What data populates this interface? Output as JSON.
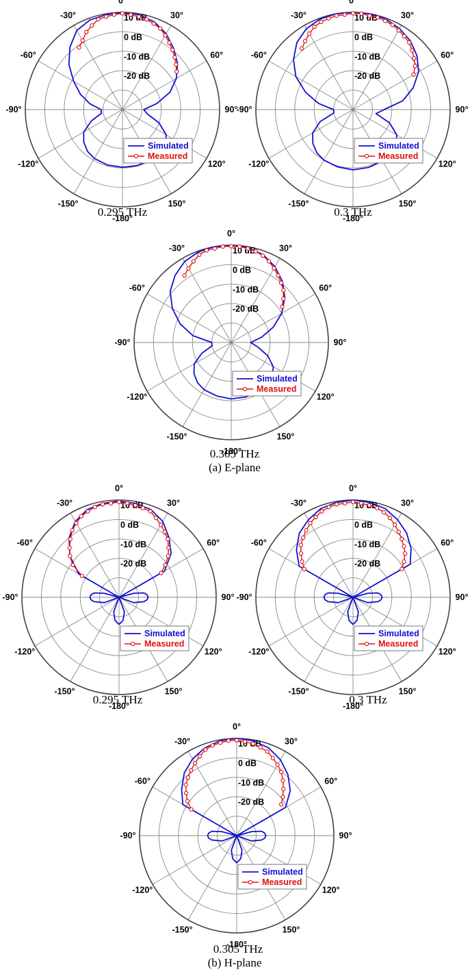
{
  "figure": {
    "section_a_caption": "(a) E-plane",
    "section_b_caption": "(b) H-plane",
    "angle_labels": [
      "0°",
      "30°",
      "60°",
      "90°",
      "120°",
      "150°",
      "-180°",
      "-150°",
      "-120°",
      "-90°",
      "-60°",
      "-30°"
    ],
    "db_labels": [
      "10 dB",
      "0 dB",
      "-10 dB",
      "-20 dB"
    ],
    "legend": {
      "simulated": "Simulated",
      "measured": "Measured"
    },
    "colors": {
      "simulated": "#1010d0",
      "measured": "#e01010",
      "grid": "#888888",
      "outer": "#444444"
    }
  },
  "chart_data": [
    {
      "type": "polar-line",
      "plane": "E-plane",
      "frequency": "0.295 THz",
      "r_range_dB": [
        -40,
        10
      ],
      "r_ticks_dB": [
        10,
        0,
        -10,
        -20
      ],
      "series": [
        {
          "name": "Simulated",
          "theta_deg": [
            -180,
            -165,
            -150,
            -140,
            -130,
            -120,
            -110,
            -100,
            -90,
            -80,
            -70,
            -60,
            -50,
            -40,
            -30,
            -20,
            -10,
            0,
            10,
            20,
            30,
            40,
            50,
            60,
            70,
            80,
            90,
            100,
            110,
            120,
            130,
            140,
            150,
            165,
            180
          ],
          "r_dB": [
            -10.3,
            -10.5,
            -11,
            -12,
            -14,
            -17,
            -23,
            -29,
            -29,
            -23,
            -17,
            -11,
            -4,
            2,
            7,
            9,
            9.5,
            10,
            9.5,
            8,
            5,
            1,
            -3,
            -8,
            -14,
            -22,
            -29,
            -27,
            -20,
            -14,
            -11,
            -10.5,
            -10.3,
            -10.2,
            -10.3
          ]
        },
        {
          "name": "Measured",
          "theta_deg": [
            -35,
            -30,
            -25,
            -20,
            -15,
            -10,
            -5,
            0,
            5,
            10,
            15,
            20,
            25,
            30,
            35,
            40,
            45,
            50,
            55
          ],
          "r_dB": [
            -1,
            1,
            4,
            6,
            8,
            8.5,
            9,
            9.5,
            9,
            8.5,
            8,
            7,
            6,
            4,
            2,
            0,
            -2,
            -4,
            -6
          ]
        }
      ]
    },
    {
      "type": "polar-line",
      "plane": "E-plane",
      "frequency": "0.3 THz",
      "r_range_dB": [
        -40,
        10
      ],
      "r_ticks_dB": [
        10,
        0,
        -10,
        -20
      ],
      "series": [
        {
          "name": "Simulated",
          "theta_deg": [
            -180,
            -165,
            -150,
            -140,
            -130,
            -120,
            -110,
            -100,
            -90,
            -80,
            -70,
            -60,
            -50,
            -40,
            -30,
            -20,
            -10,
            0,
            10,
            20,
            30,
            40,
            50,
            60,
            70,
            80,
            90,
            100,
            110,
            120,
            130,
            140,
            150,
            165,
            180
          ],
          "r_dB": [
            -9,
            -9.5,
            -10,
            -11,
            -13,
            -16,
            -22,
            -30,
            -30,
            -22,
            -14,
            -6,
            0,
            5,
            8,
            9.5,
            10,
            10,
            10,
            9.5,
            8,
            6,
            3,
            -1,
            -7,
            -14,
            -24,
            -28,
            -20,
            -14,
            -11,
            -10,
            -9.5,
            -9.2,
            -9
          ]
        },
        {
          "name": "Measured",
          "theta_deg": [
            -40,
            -35,
            -30,
            -25,
            -20,
            -15,
            -10,
            -5,
            0,
            5,
            10,
            15,
            20,
            25,
            30,
            35,
            40,
            45,
            50,
            55,
            60
          ],
          "r_dB": [
            1,
            3,
            5,
            7,
            8,
            8.5,
            9,
            9,
            9.5,
            9.5,
            9,
            9,
            8.5,
            8,
            7,
            6,
            5,
            3,
            1,
            -1,
            -4
          ]
        }
      ]
    },
    {
      "type": "polar-line",
      "plane": "E-plane",
      "frequency": "0.305 THz",
      "r_range_dB": [
        -40,
        10
      ],
      "r_ticks_dB": [
        10,
        0,
        -10,
        -20
      ],
      "series": [
        {
          "name": "Simulated",
          "theta_deg": [
            -180,
            -165,
            -150,
            -140,
            -130,
            -120,
            -110,
            -100,
            -90,
            -80,
            -70,
            -60,
            -50,
            -40,
            -30,
            -20,
            -10,
            0,
            10,
            20,
            30,
            40,
            50,
            60,
            70,
            80,
            90,
            100,
            110,
            120,
            130,
            140,
            150,
            165,
            180
          ],
          "r_dB": [
            -11,
            -11.5,
            -12,
            -13,
            -15,
            -18,
            -24,
            -30,
            -30,
            -20,
            -12,
            -5,
            1,
            5,
            8,
            9.5,
            10,
            10,
            9.5,
            8,
            5,
            1,
            -4,
            -10,
            -17,
            -24,
            -30,
            -26,
            -20,
            -15,
            -12.5,
            -11.5,
            -11,
            -11,
            -11
          ]
        },
        {
          "name": "Measured",
          "theta_deg": [
            -35,
            -30,
            -25,
            -20,
            -15,
            -10,
            -5,
            0,
            5,
            10,
            15,
            20,
            25,
            30,
            35,
            40,
            45,
            50,
            55
          ],
          "r_dB": [
            2,
            4,
            6,
            8,
            9,
            9,
            9.5,
            9.5,
            9.5,
            9,
            8.5,
            7.5,
            6,
            4,
            2,
            0,
            -2,
            -5,
            -8
          ]
        }
      ]
    },
    {
      "type": "polar-line",
      "plane": "H-plane",
      "frequency": "0.295 THz",
      "r_range_dB": [
        -40,
        10
      ],
      "r_ticks_dB": [
        10,
        0,
        -10,
        -20
      ],
      "series": [
        {
          "name": "Simulated",
          "theta_deg": [
            -180,
            -170,
            -160,
            -150,
            -140,
            -130,
            -120,
            -110,
            -100,
            -95,
            -90,
            -85,
            -80,
            -75,
            -70,
            -60,
            -50,
            -40,
            -30,
            -20,
            -10,
            0,
            10,
            20,
            30,
            40,
            50,
            60,
            70,
            75,
            80,
            85,
            90,
            95,
            100,
            110,
            120,
            130,
            140,
            150,
            160,
            170,
            180
          ],
          "r_dB": [
            -26,
            -28,
            -32,
            -40,
            -40,
            -40,
            -40,
            -32,
            -27,
            -25.5,
            -25,
            -25.5,
            -27,
            -32,
            -40,
            -16,
            -7,
            0,
            5,
            8,
            9,
            9.5,
            9,
            8,
            5,
            0,
            -5,
            -13,
            -40,
            -32,
            -27,
            -25.5,
            -25,
            -25.5,
            -27,
            -32,
            -40,
            -40,
            -40,
            -40,
            -32,
            -28,
            -26
          ]
        },
        {
          "name": "Measured",
          "theta_deg": [
            -60,
            -55,
            -50,
            -45,
            -40,
            -35,
            -30,
            -25,
            -20,
            -15,
            -10,
            -5,
            0,
            5,
            10,
            15,
            20,
            25,
            30,
            35,
            40,
            45,
            50,
            55,
            60
          ],
          "r_dB": [
            -18,
            -11,
            -7,
            -4,
            -1,
            2,
            4,
            6,
            7,
            8,
            8.5,
            8.5,
            9,
            8.5,
            8,
            7.5,
            7,
            5,
            3,
            1,
            -1,
            -4,
            -7,
            -11,
            -15
          ]
        }
      ]
    },
    {
      "type": "polar-line",
      "plane": "H-plane",
      "frequency": "0.3 THz",
      "r_range_dB": [
        -40,
        10
      ],
      "r_ticks_dB": [
        10,
        0,
        -10,
        -20
      ],
      "series": [
        {
          "name": "Simulated",
          "theta_deg": [
            -180,
            -170,
            -160,
            -150,
            -140,
            -130,
            -120,
            -110,
            -100,
            -95,
            -90,
            -85,
            -80,
            -75,
            -70,
            -60,
            -50,
            -40,
            -30,
            -20,
            -10,
            0,
            10,
            20,
            30,
            40,
            50,
            60,
            70,
            75,
            80,
            85,
            90,
            95,
            100,
            110,
            120,
            130,
            140,
            150,
            160,
            170,
            180
          ],
          "r_dB": [
            -26,
            -28,
            -32,
            -40,
            -40,
            -40,
            -40,
            -32,
            -27,
            -25.5,
            -25,
            -25.5,
            -27,
            -32,
            -40,
            -8,
            -2,
            3,
            6,
            8.5,
            9.5,
            10,
            9.5,
            8.5,
            6,
            3,
            -1,
            -6,
            -40,
            -32,
            -27,
            -25.5,
            -25,
            -25.5,
            -27,
            -32,
            -40,
            -40,
            -40,
            -40,
            -32,
            -28,
            -26
          ]
        },
        {
          "name": "Measured",
          "theta_deg": [
            -60,
            -55,
            -50,
            -45,
            -40,
            -35,
            -30,
            -25,
            -20,
            -15,
            -10,
            -5,
            0,
            5,
            10,
            15,
            20,
            25,
            30,
            35,
            40,
            45,
            50,
            55,
            60
          ],
          "r_dB": [
            -11,
            -8,
            -5,
            -2,
            0,
            2,
            4,
            5.5,
            7,
            8,
            8.5,
            8.5,
            9,
            8.5,
            8,
            7.5,
            6.5,
            5,
            3,
            1,
            -1,
            -3,
            -5,
            -8,
            -11
          ]
        }
      ]
    },
    {
      "type": "polar-line",
      "plane": "H-plane",
      "frequency": "0.305 THz",
      "r_range_dB": [
        -40,
        10
      ],
      "r_ticks_dB": [
        10,
        0,
        -10,
        -20
      ],
      "series": [
        {
          "name": "Simulated",
          "theta_deg": [
            -180,
            -170,
            -160,
            -150,
            -140,
            -130,
            -120,
            -110,
            -100,
            -95,
            -90,
            -85,
            -80,
            -75,
            -70,
            -60,
            -50,
            -40,
            -30,
            -20,
            -10,
            0,
            10,
            20,
            30,
            40,
            50,
            60,
            70,
            75,
            80,
            85,
            90,
            95,
            100,
            110,
            120,
            130,
            140,
            150,
            160,
            170,
            180
          ],
          "r_dB": [
            -26,
            -28,
            -32,
            -40,
            -40,
            -40,
            -40,
            -32,
            -27,
            -25.5,
            -25,
            -25.5,
            -27,
            -32,
            -40,
            -8,
            -3,
            2,
            5.5,
            8,
            9.5,
            10,
            9.5,
            8,
            5,
            1,
            -4,
            -11,
            -40,
            -32,
            -27,
            -25.5,
            -25,
            -25.5,
            -27,
            -32,
            -40,
            -40,
            -40,
            -40,
            -32,
            -28,
            -26
          ]
        },
        {
          "name": "Measured",
          "theta_deg": [
            -60,
            -55,
            -50,
            -45,
            -40,
            -35,
            -30,
            -25,
            -20,
            -15,
            -10,
            -5,
            0,
            5,
            10,
            15,
            20,
            25,
            30,
            35,
            40,
            45,
            50,
            55
          ],
          "r_dB": [
            -13,
            -9,
            -6,
            -3,
            -1,
            1,
            3,
            5,
            7,
            8,
            8.5,
            9,
            9,
            8.5,
            8,
            7,
            6,
            4,
            2,
            0,
            -3,
            -6,
            -9,
            -12
          ]
        }
      ]
    }
  ]
}
